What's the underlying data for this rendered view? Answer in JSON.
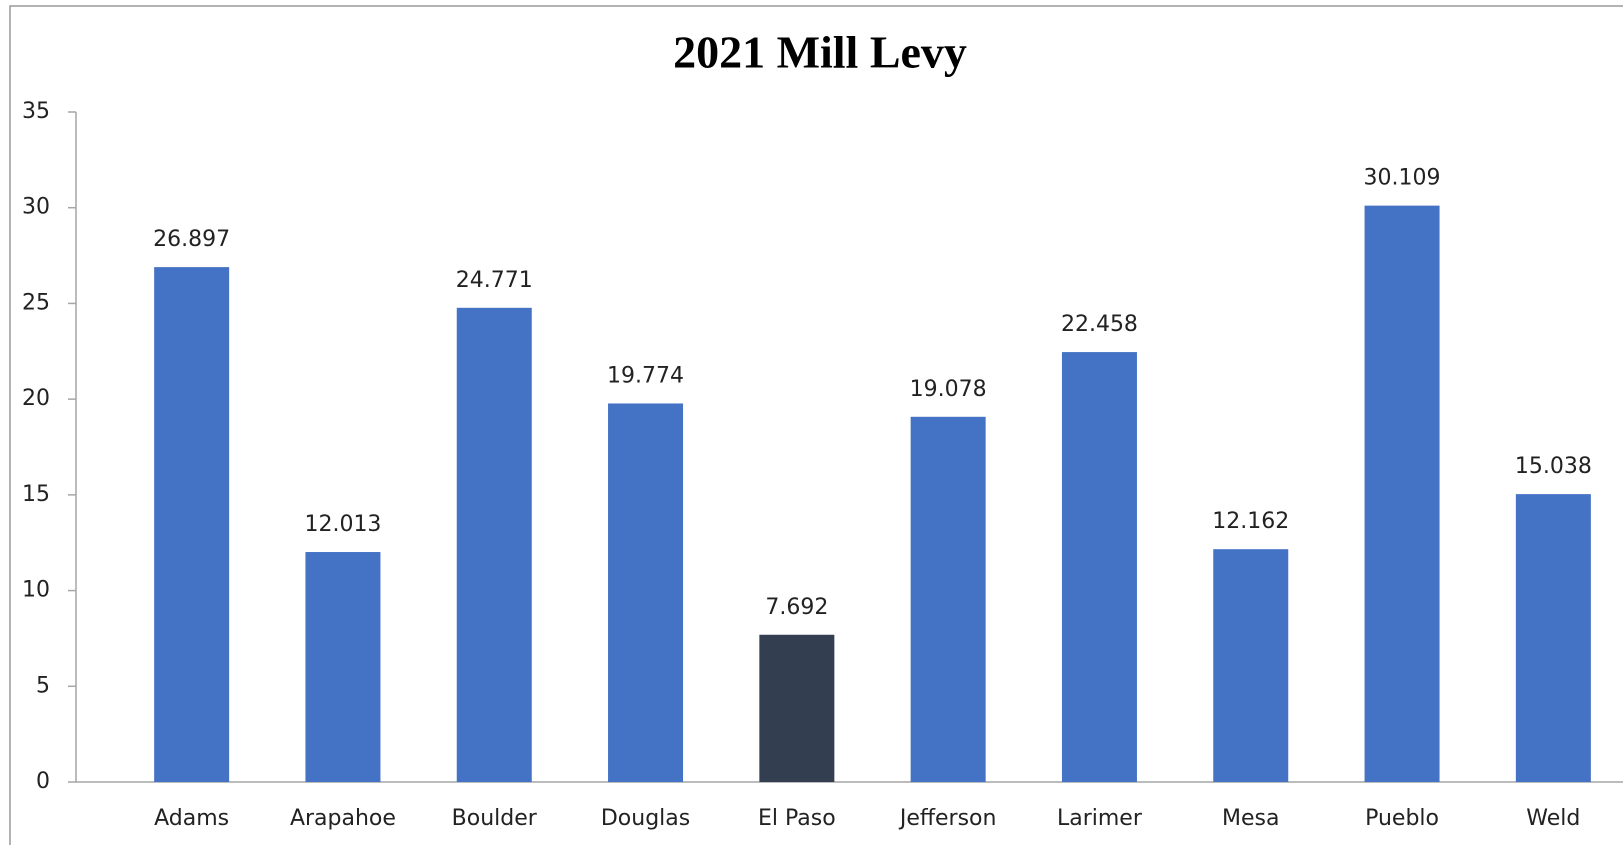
{
  "chart_data": {
    "type": "bar",
    "title": "2021 Mill Levy",
    "categories": [
      "Adams",
      "Arapahoe",
      "Boulder",
      "Douglas",
      "El Paso",
      "Jefferson",
      "Larimer",
      "Mesa",
      "Pueblo",
      "Weld"
    ],
    "values": [
      26.897,
      12.013,
      24.771,
      19.774,
      7.692,
      19.078,
      22.458,
      12.162,
      30.109,
      15.038
    ],
    "colors": [
      "#4472c4",
      "#4472c4",
      "#4472c4",
      "#4472c4",
      "#333f50",
      "#4472c4",
      "#4472c4",
      "#4472c4",
      "#4472c4",
      "#4472c4"
    ],
    "ylim": [
      0,
      35
    ],
    "yticks": [
      0,
      5,
      10,
      15,
      20,
      25,
      30,
      35
    ],
    "grid": false
  }
}
